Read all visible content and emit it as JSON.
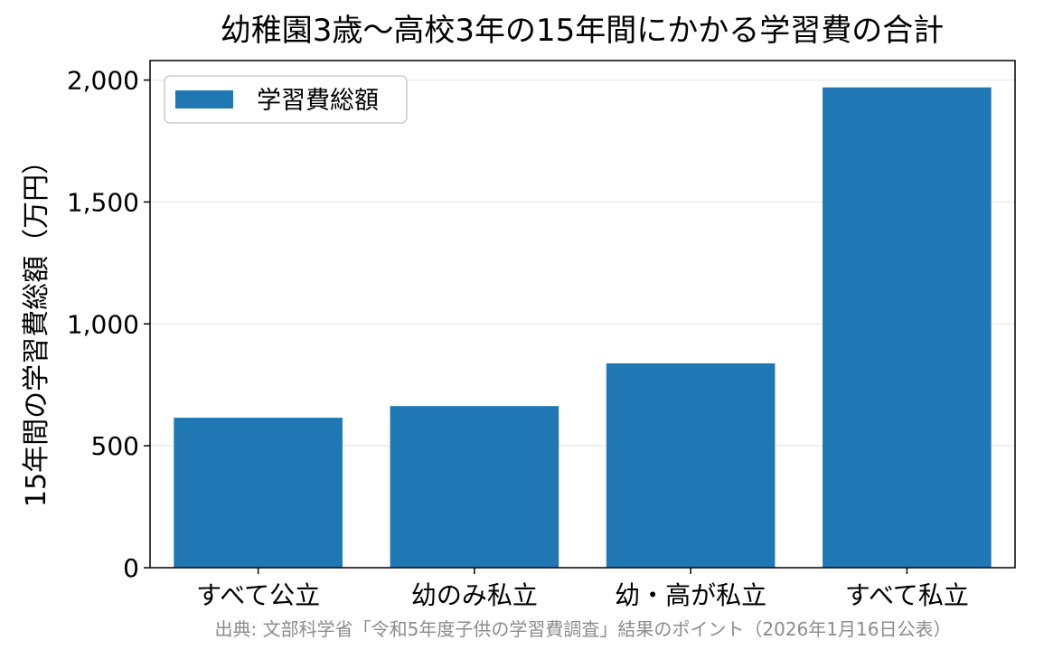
{
  "chart_data": {
    "type": "bar",
    "title": "幼稚園3歳～高校3年の15年間にかかる学習費の合計",
    "ylabel": "15年間の学習費総額（万円）",
    "xlabel": "",
    "categories": [
      "すべて公立",
      "幼のみ私立",
      "幼・高が私立",
      "すべて私立"
    ],
    "series": [
      {
        "name": "学習費総額",
        "values": [
          615,
          663,
          838,
          1970
        ]
      }
    ],
    "ylim": [
      0,
      2080
    ],
    "yticks": [
      0,
      500,
      1000,
      1500,
      2000
    ],
    "ytick_labels": [
      "0",
      "500",
      "1,000",
      "1,500",
      "2,000"
    ],
    "grid": "horizontal",
    "legend": "top-left",
    "source": "出典: 文部科学省「令和5年度子供の学習費調査」結果のポイント（2026年1月16日公表）",
    "colors": {
      "bar": "#1f77b4",
      "grid": "#e5e5e5",
      "source_text": "#8c8c8c"
    }
  }
}
